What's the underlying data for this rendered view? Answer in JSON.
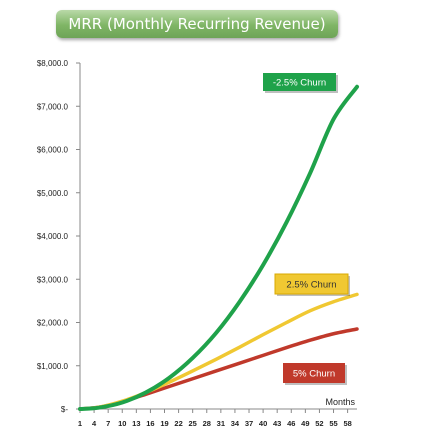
{
  "chart_data": {
    "type": "line",
    "title": "MRR (Monthly Recurring Revenue)",
    "xlabel": "Months",
    "ylabel": "",
    "x_ticks": [
      1,
      4,
      7,
      10,
      13,
      16,
      19,
      22,
      25,
      28,
      31,
      34,
      37,
      40,
      43,
      46,
      49,
      52,
      55,
      58
    ],
    "xlim": [
      1,
      60
    ],
    "ylim": [
      0,
      8000
    ],
    "y_ticks": [
      "$-",
      "$1,000.0",
      "$2,000.0",
      "$3,000.0",
      "$4,000.0",
      "$5,000.0",
      "$6,000.0",
      "$7,000.0",
      "$8,000.0"
    ],
    "y_tick_values": [
      0,
      1000,
      2000,
      3000,
      4000,
      5000,
      6000,
      7000,
      8000
    ],
    "grid": false,
    "series": [
      {
        "name": "-2.5% Churn",
        "color": "#1fa24a",
        "x": [
          1,
          5,
          10,
          15,
          20,
          25,
          30,
          35,
          40,
          45,
          50,
          55,
          60
        ],
        "y": [
          0,
          30,
          150,
          380,
          720,
          1180,
          1760,
          2480,
          3330,
          4320,
          5450,
          6700,
          7450
        ]
      },
      {
        "name": "2.5% Churn",
        "color": "#f0c832",
        "x": [
          1,
          5,
          10,
          15,
          20,
          25,
          30,
          35,
          40,
          45,
          50,
          55,
          60
        ],
        "y": [
          0,
          40,
          180,
          380,
          620,
          880,
          1150,
          1430,
          1720,
          2000,
          2270,
          2480,
          2650
        ]
      },
      {
        "name": "5% Churn",
        "color": "#c0392b",
        "x": [
          1,
          5,
          10,
          15,
          20,
          25,
          30,
          35,
          40,
          45,
          50,
          55,
          60
        ],
        "y": [
          0,
          40,
          170,
          340,
          520,
          700,
          880,
          1060,
          1240,
          1420,
          1590,
          1740,
          1850
        ]
      }
    ]
  }
}
